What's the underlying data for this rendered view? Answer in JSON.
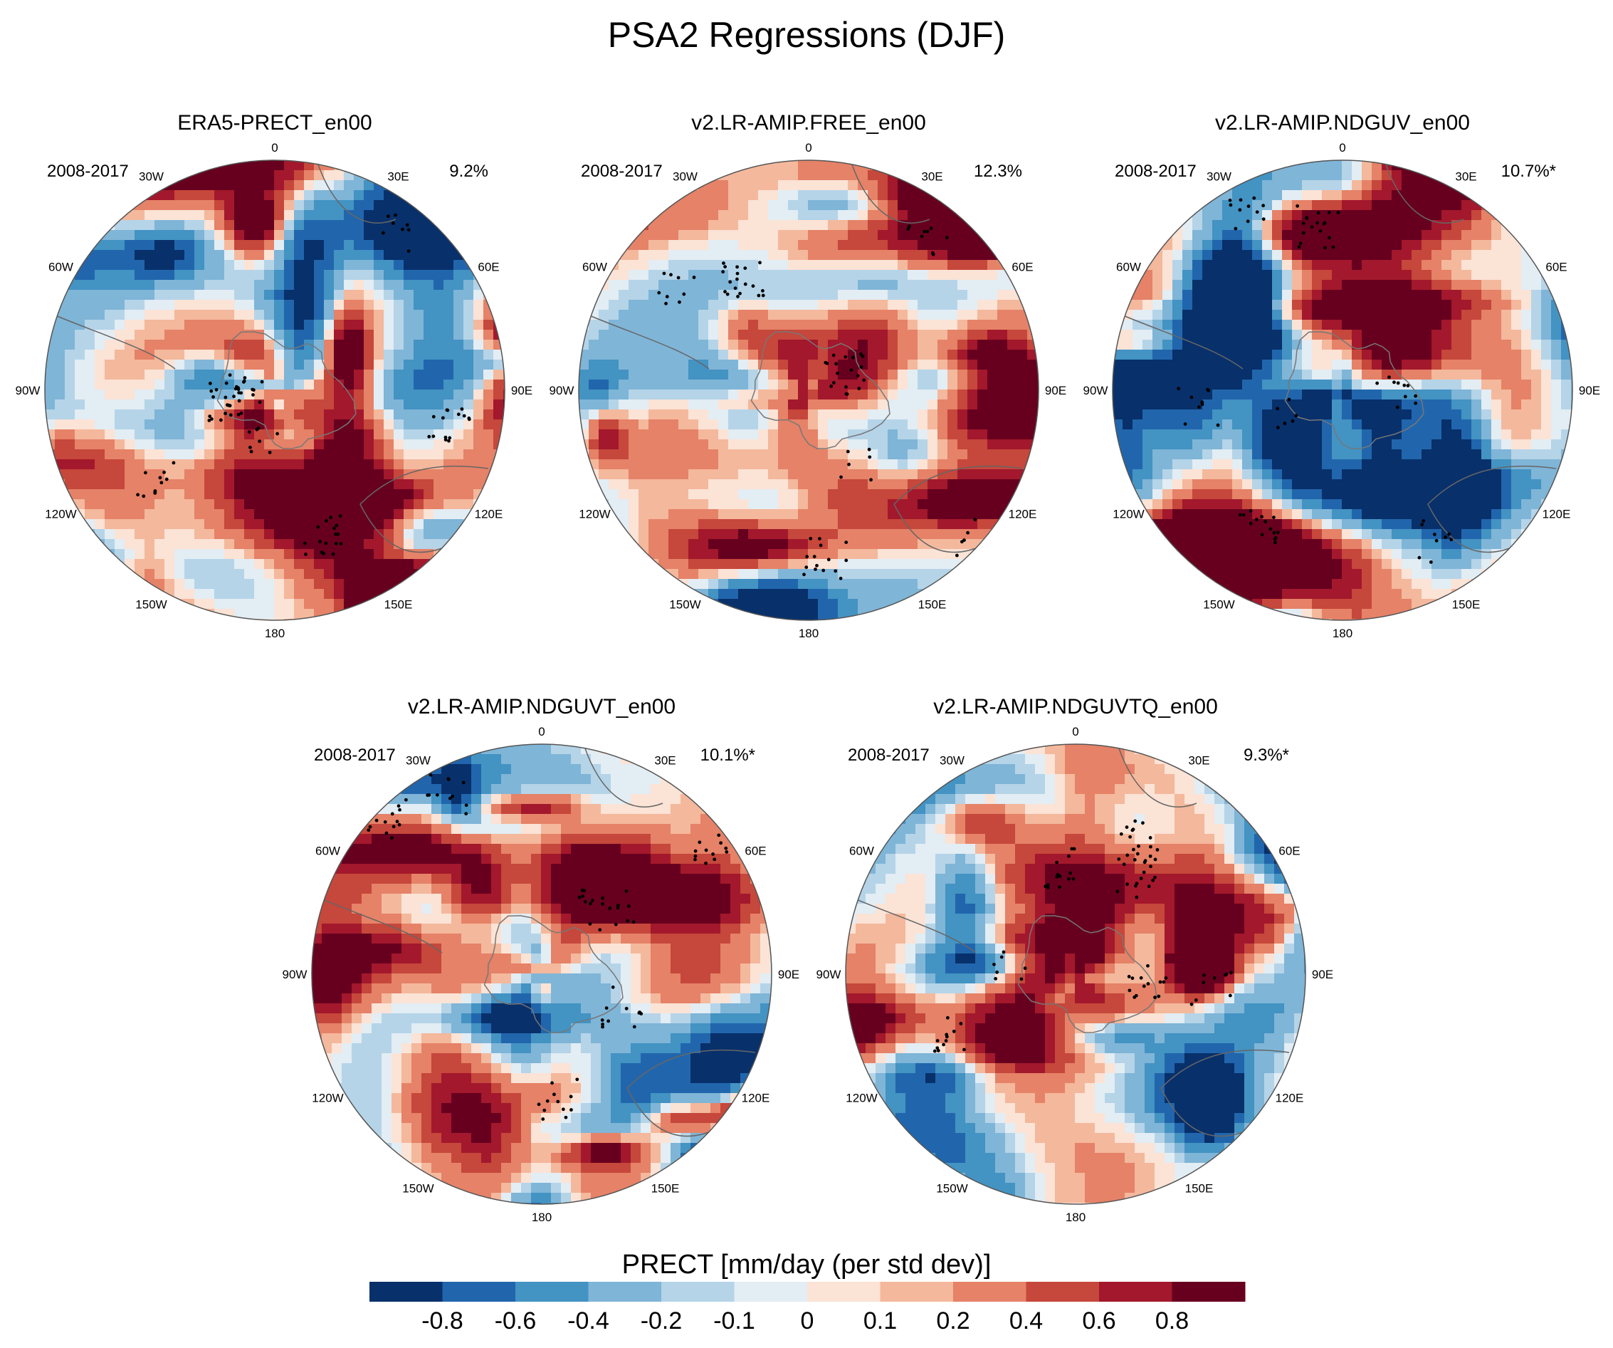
{
  "chart_data": {
    "type": "heatmap",
    "title": "PSA2 Regressions (DJF)",
    "projection": "south polar stereographic",
    "longitude_labels": [
      "0",
      "30E",
      "60E",
      "90E",
      "120E",
      "150E",
      "180",
      "150W",
      "120W",
      "90W",
      "60W",
      "30W"
    ],
    "panels": [
      {
        "title": "ERA5-PRECT_en00",
        "period": "2008-2017",
        "variance_explained": "9.2%"
      },
      {
        "title": "v2.LR-AMIP.FREE_en00",
        "period": "2008-2017",
        "variance_explained": "12.3%"
      },
      {
        "title": "v2.LR-AMIP.NDGUV_en00",
        "period": "2008-2017",
        "variance_explained": "10.7%*"
      },
      {
        "title": "v2.LR-AMIP.NDGUVT_en00",
        "period": "2008-2017",
        "variance_explained": "10.1%*"
      },
      {
        "title": "v2.LR-AMIP.NDGUVTQ_en00",
        "period": "2008-2017",
        "variance_explained": "9.3%*"
      }
    ],
    "colorbar": {
      "label": "PRECT [mm/day (per std dev)]",
      "levels": [
        -0.8,
        -0.6,
        -0.4,
        -0.2,
        -0.1,
        0,
        0.1,
        0.2,
        0.4,
        0.6,
        0.8
      ],
      "tick_labels": [
        "-0.8",
        "-0.6",
        "-0.4",
        "-0.2",
        "-0.1",
        "0",
        "0.1",
        "0.2",
        "0.4",
        "0.6",
        "0.8"
      ],
      "colors": [
        "#08306b",
        "#2166ac",
        "#4393c3",
        "#7fb5d7",
        "#b5d4e8",
        "#e3edf4",
        "#fbe3d6",
        "#f4b89c",
        "#e58268",
        "#c6473b",
        "#a3182c",
        "#67001f"
      ]
    }
  }
}
